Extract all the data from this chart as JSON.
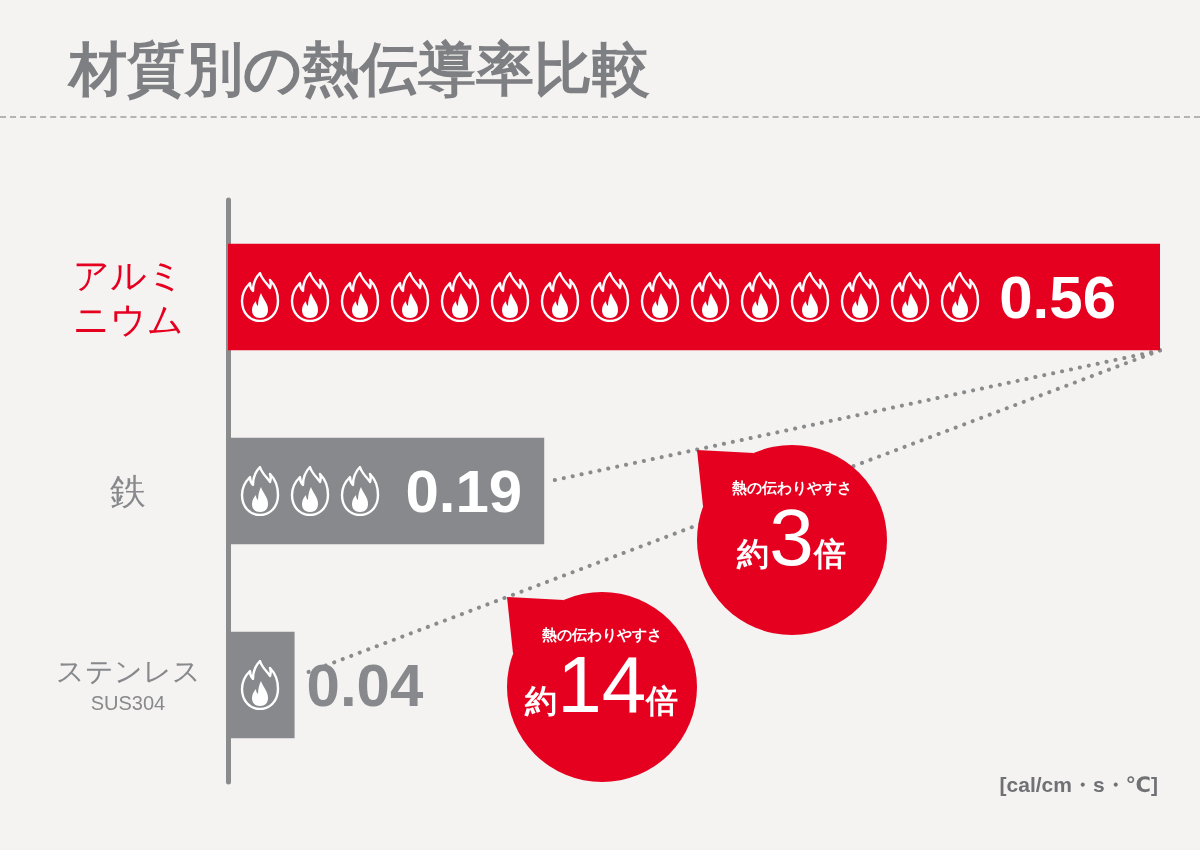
{
  "chart_data": {
    "type": "bar",
    "orientation": "horizontal",
    "title": "材質別の熱伝導率比較",
    "categories": [
      "アルミニウム",
      "鉄",
      "ステンレス\nSUS304"
    ],
    "values": [
      0.56,
      0.19,
      0.04
    ],
    "colors": [
      "#e50020",
      "#87898c",
      "#87898c"
    ],
    "data_labels": true,
    "tick_labels": "y",
    "xlabel": "[cal/cm・s・℃]",
    "annotations": [
      "熱の伝わりやすさ約3倍",
      "熱の伝わりやすさ約14倍"
    ]
  }
}
